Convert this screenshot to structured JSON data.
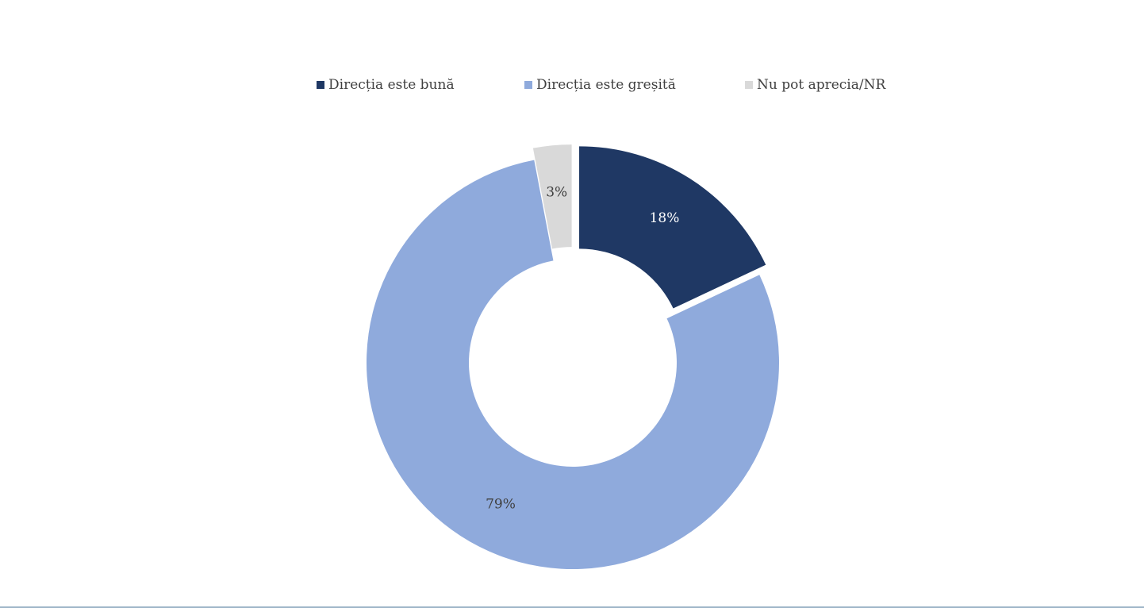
{
  "chart_data": {
    "type": "pie",
    "variant": "donut",
    "title": "",
    "categories": [
      "Direcția este bună",
      "Direcția este greșită",
      "Nu pot aprecia/NR"
    ],
    "values": [
      18,
      79,
      3
    ],
    "value_labels": [
      "18%",
      "79%",
      "3%"
    ],
    "colors": [
      "#1f3864",
      "#8faadc",
      "#d9d9d9"
    ],
    "label_colors": [
      "#ffffff",
      "#404040",
      "#404040"
    ],
    "exploded": [
      true,
      false,
      true
    ],
    "legend_position": "top"
  }
}
